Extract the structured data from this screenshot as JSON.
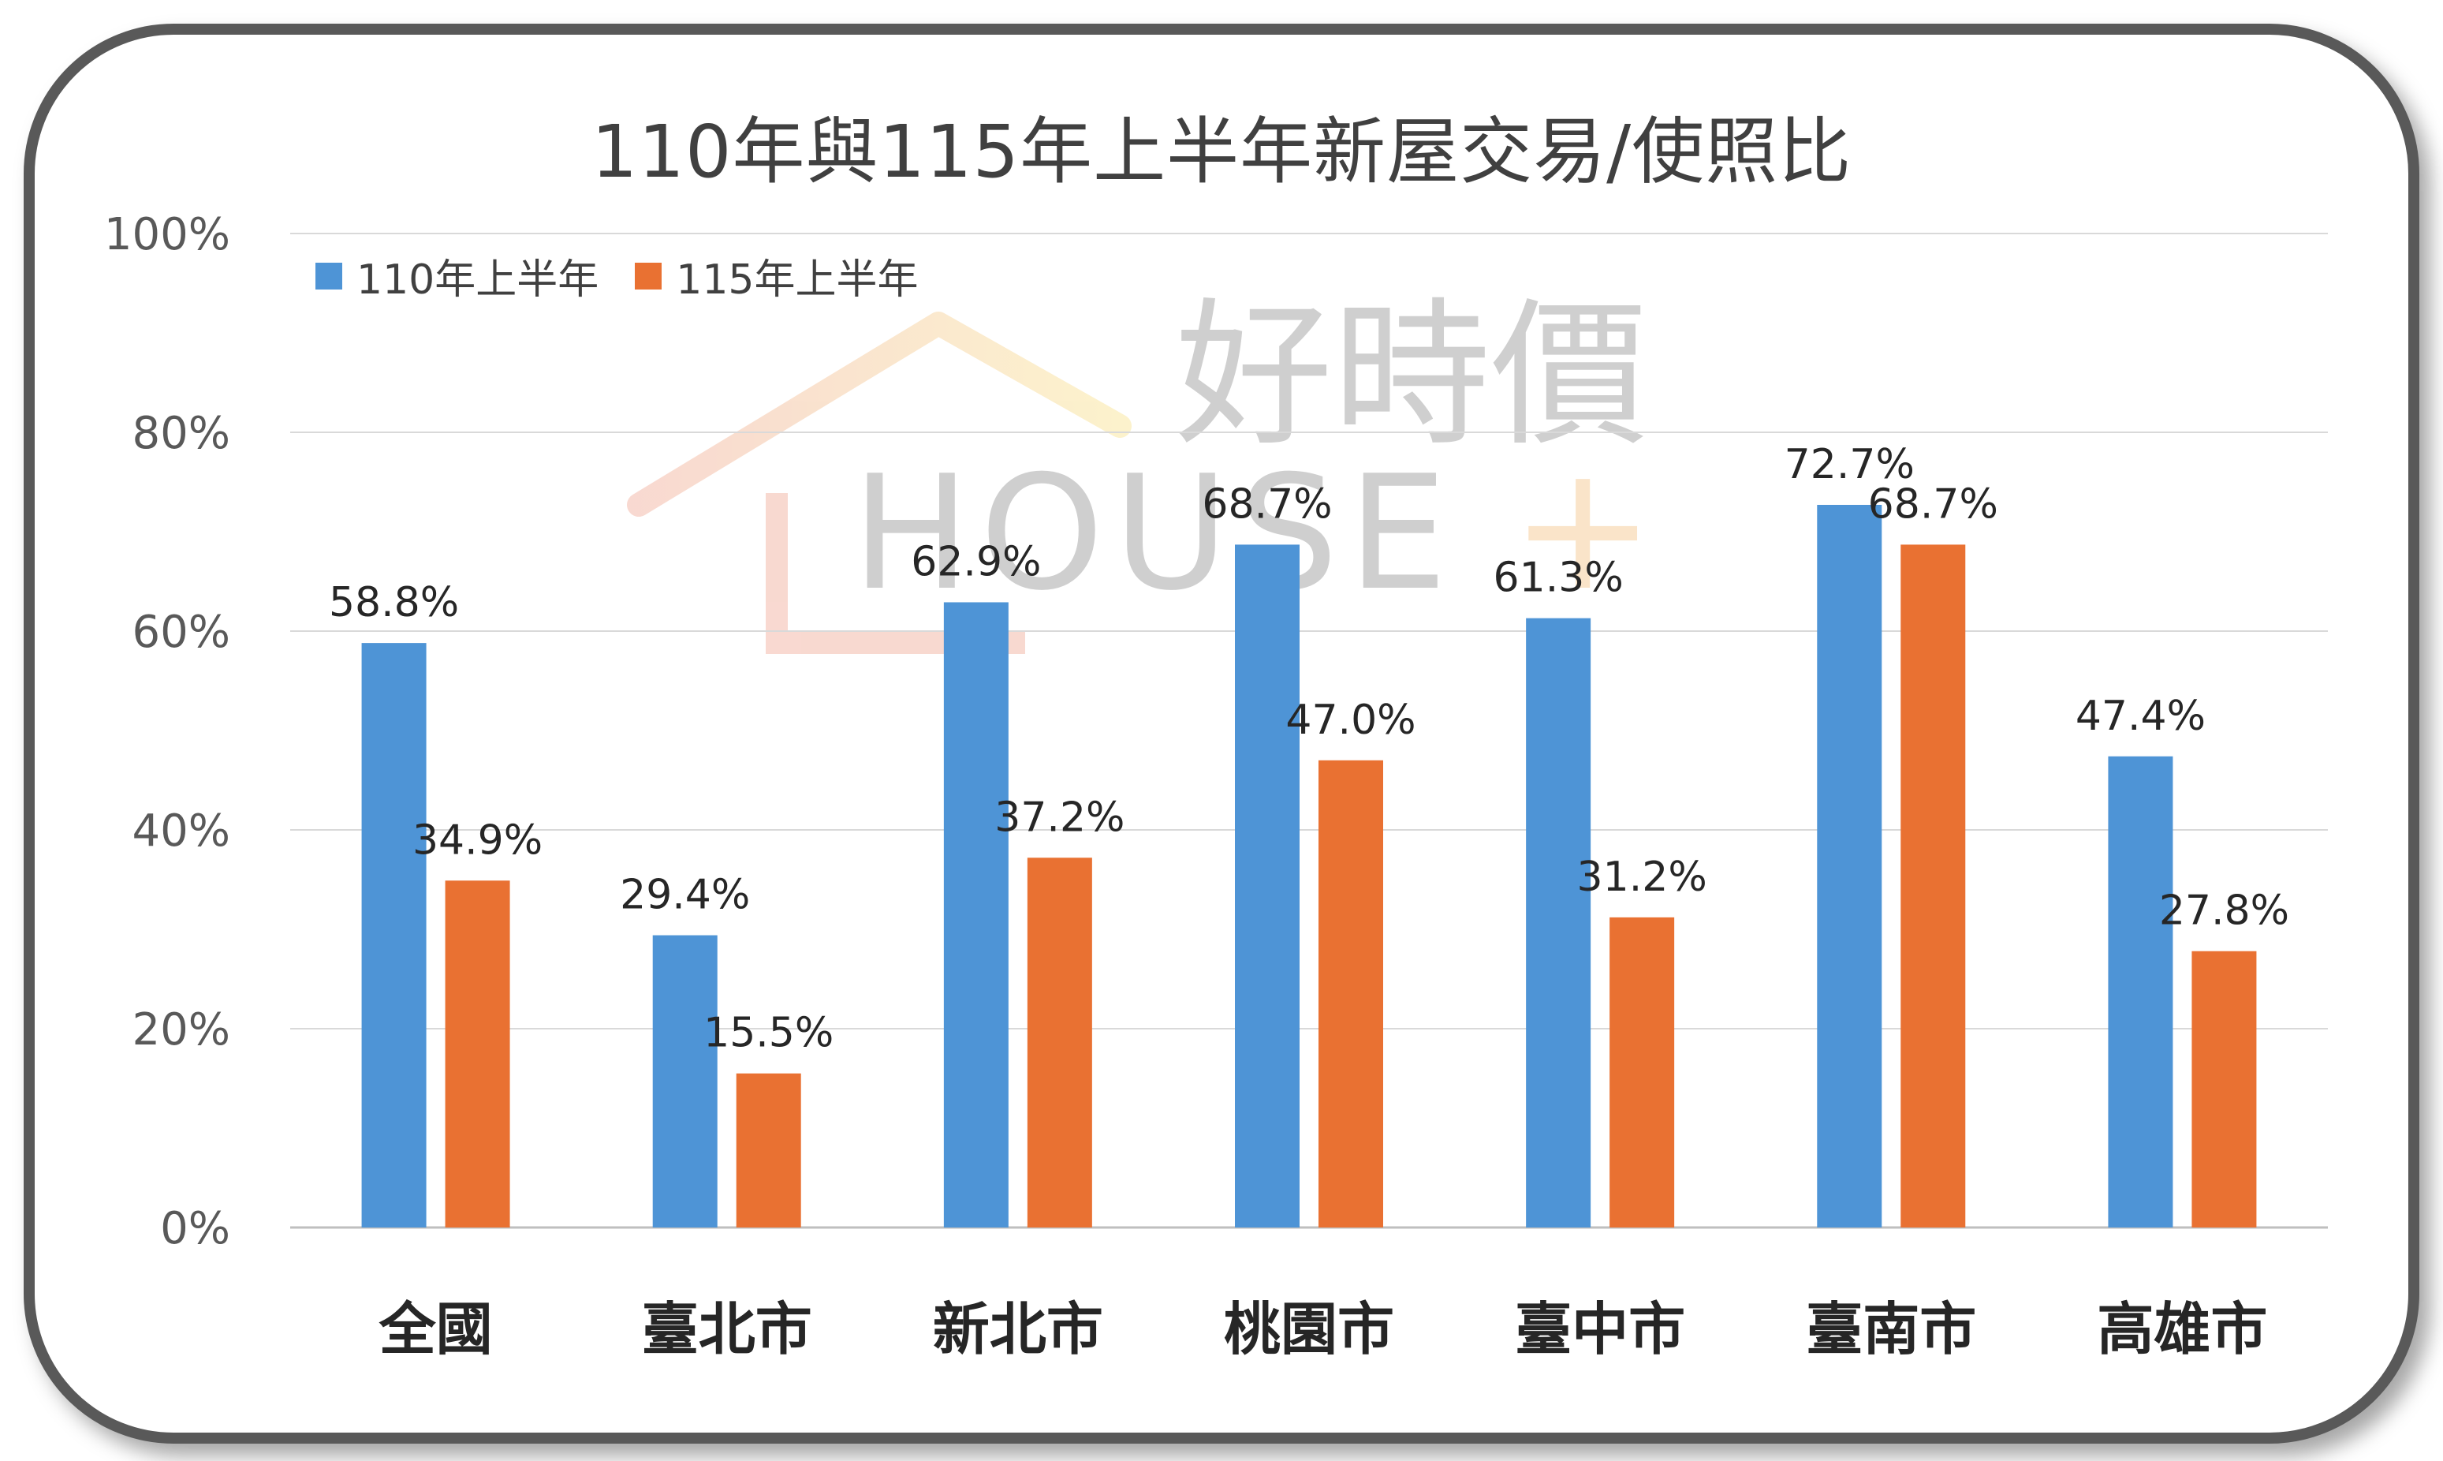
{
  "chart_data": {
    "type": "bar",
    "title": "110年與115年上半年新屋交易/使照比",
    "categories": [
      "全國",
      "臺北市",
      "新北市",
      "桃園市",
      "臺中市",
      "臺南市",
      "高雄市"
    ],
    "series": [
      {
        "name": "110年上半年",
        "color": "#4E94D6",
        "values": [
          58.8,
          29.4,
          62.9,
          68.7,
          61.3,
          72.7,
          47.4
        ],
        "labels": [
          "58.8%",
          "29.4%",
          "62.9%",
          "68.7%",
          "61.3%",
          "72.7%",
          "47.4%"
        ]
      },
      {
        "name": "115年上半年",
        "color": "#E97132",
        "values": [
          34.9,
          15.5,
          37.2,
          47.0,
          31.2,
          68.7,
          27.8
        ],
        "labels": [
          "34.9%",
          "15.5%",
          "37.2%",
          "47.0%",
          "31.2%",
          "68.7%",
          "27.8%"
        ]
      }
    ],
    "y_ticks": [
      "0%",
      "20%",
      "40%",
      "60%",
      "80%",
      "100%"
    ],
    "ylim": [
      0,
      100
    ],
    "grid": true,
    "legend_position": "top-left"
  },
  "watermark": {
    "chinese": "好時價",
    "latin": "HOUSE",
    "plus": "+"
  }
}
